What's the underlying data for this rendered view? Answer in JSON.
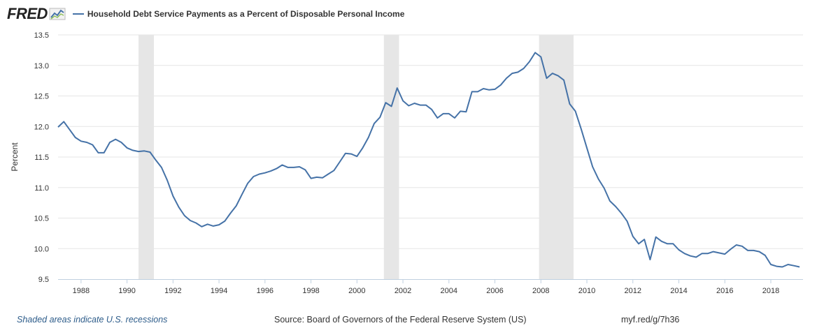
{
  "header": {
    "logo_text": "FRED",
    "logo_icon": "line-chart-icon",
    "series_label": "Household Debt Service Payments as a Percent of Disposable Personal Income"
  },
  "footer": {
    "recession_note": "Shaded areas indicate U.S. recessions",
    "source": "Source: Board of Governors of the Federal Reserve System (US)",
    "link": "myf.red/g/7h36"
  },
  "colors": {
    "line": "#4572a7",
    "recession": "#e6e6e6",
    "grid": "#e6e6e6",
    "axis": "#333333"
  },
  "chart_data": {
    "type": "line",
    "title": "",
    "xlabel": "",
    "ylabel": "Percent",
    "xlim": [
      1987.0,
      2019.4
    ],
    "ylim": [
      9.5,
      13.5
    ],
    "yticks": [
      9.5,
      10.0,
      10.5,
      11.0,
      11.5,
      12.0,
      12.5,
      13.0,
      13.5
    ],
    "ytick_labels": [
      "9.5",
      "10.0",
      "10.5",
      "11.0",
      "11.5",
      "12.0",
      "12.5",
      "13.0",
      "13.5"
    ],
    "xticks": [
      1988,
      1990,
      1992,
      1994,
      1996,
      1998,
      2000,
      2002,
      2004,
      2006,
      2008,
      2010,
      2012,
      2014,
      2016,
      2018
    ],
    "xtick_labels": [
      "1988",
      "1990",
      "1992",
      "1994",
      "1996",
      "1998",
      "2000",
      "2002",
      "2004",
      "2006",
      "2008",
      "2010",
      "2012",
      "2014",
      "2016",
      "2018"
    ],
    "grid": "horizontal",
    "legend": "top-left",
    "recessions": [
      [
        1990.5,
        1991.17
      ],
      [
        2001.17,
        2001.83
      ],
      [
        2007.92,
        2009.42
      ]
    ],
    "series": [
      {
        "name": "Household Debt Service Payments as a Percent of Disposable Personal Income",
        "x": [
          1987.0,
          1987.25,
          1987.5,
          1987.75,
          1988.0,
          1988.25,
          1988.5,
          1988.75,
          1989.0,
          1989.25,
          1989.5,
          1989.75,
          1990.0,
          1990.25,
          1990.5,
          1990.75,
          1991.0,
          1991.25,
          1991.5,
          1991.75,
          1992.0,
          1992.25,
          1992.5,
          1992.75,
          1993.0,
          1993.25,
          1993.5,
          1993.75,
          1994.0,
          1994.25,
          1994.5,
          1994.75,
          1995.0,
          1995.25,
          1995.5,
          1995.75,
          1996.0,
          1996.25,
          1996.5,
          1996.75,
          1997.0,
          1997.25,
          1997.5,
          1997.75,
          1998.0,
          1998.25,
          1998.5,
          1998.75,
          1999.0,
          1999.25,
          1999.5,
          1999.75,
          2000.0,
          2000.25,
          2000.5,
          2000.75,
          2001.0,
          2001.25,
          2001.5,
          2001.75,
          2002.0,
          2002.25,
          2002.5,
          2002.75,
          2003.0,
          2003.25,
          2003.5,
          2003.75,
          2004.0,
          2004.25,
          2004.5,
          2004.75,
          2005.0,
          2005.25,
          2005.5,
          2005.75,
          2006.0,
          2006.25,
          2006.5,
          2006.75,
          2007.0,
          2007.25,
          2007.5,
          2007.75,
          2008.0,
          2008.25,
          2008.5,
          2008.75,
          2009.0,
          2009.25,
          2009.5,
          2009.75,
          2010.0,
          2010.25,
          2010.5,
          2010.75,
          2011.0,
          2011.25,
          2011.5,
          2011.75,
          2012.0,
          2012.25,
          2012.5,
          2012.75,
          2013.0,
          2013.25,
          2013.5,
          2013.75,
          2014.0,
          2014.25,
          2014.5,
          2014.75,
          2015.0,
          2015.25,
          2015.5,
          2015.75,
          2016.0,
          2016.25,
          2016.5,
          2016.75,
          2017.0,
          2017.25,
          2017.5,
          2017.75,
          2018.0,
          2018.25,
          2018.5,
          2018.75,
          2019.0,
          2019.25
        ],
        "values": [
          11.99,
          12.08,
          11.95,
          11.82,
          11.76,
          11.74,
          11.7,
          11.57,
          11.57,
          11.74,
          11.79,
          11.74,
          11.65,
          11.61,
          11.59,
          11.6,
          11.58,
          11.45,
          11.33,
          11.12,
          10.86,
          10.68,
          10.54,
          10.46,
          10.42,
          10.36,
          10.4,
          10.37,
          10.39,
          10.45,
          10.58,
          10.7,
          10.89,
          11.07,
          11.18,
          11.22,
          11.24,
          11.27,
          11.31,
          11.37,
          11.33,
          11.33,
          11.34,
          11.29,
          11.15,
          11.17,
          11.16,
          11.22,
          11.28,
          11.42,
          11.56,
          11.55,
          11.51,
          11.65,
          11.82,
          12.05,
          12.15,
          12.39,
          12.33,
          12.63,
          12.42,
          12.34,
          12.38,
          12.35,
          12.35,
          12.28,
          12.14,
          12.21,
          12.21,
          12.14,
          12.25,
          12.24,
          12.57,
          12.57,
          12.62,
          12.6,
          12.61,
          12.68,
          12.79,
          12.87,
          12.89,
          12.95,
          13.06,
          13.21,
          13.14,
          12.79,
          12.87,
          12.83,
          12.76,
          12.37,
          12.25,
          11.96,
          11.65,
          11.34,
          11.14,
          10.99,
          10.78,
          10.69,
          10.58,
          10.45,
          10.2,
          10.08,
          10.15,
          9.82,
          10.19,
          10.12,
          10.08,
          10.08,
          9.98,
          9.92,
          9.88,
          9.86,
          9.92,
          9.92,
          9.95,
          9.93,
          9.91,
          9.99,
          10.06,
          10.04,
          9.97,
          9.97,
          9.95,
          9.89,
          9.74,
          9.71,
          9.7,
          9.74,
          9.72,
          9.7
        ]
      }
    ]
  }
}
